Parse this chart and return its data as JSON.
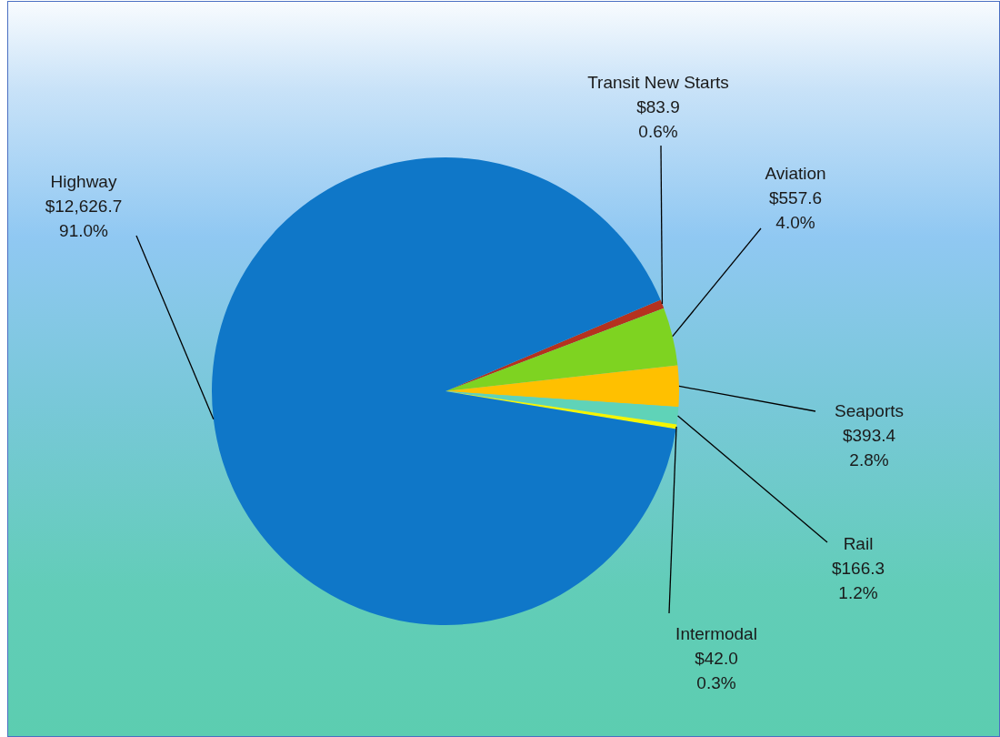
{
  "chart_data": {
    "type": "pie",
    "categories": [
      "Transit New Starts",
      "Aviation",
      "Seaports",
      "Rail",
      "Intermodal",
      "Highway"
    ],
    "values": [
      83.9,
      557.6,
      393.4,
      166.3,
      42.0,
      12626.7
    ],
    "colors": [
      "#b5321f",
      "#7ed321",
      "#ffc000",
      "#5fd3b8",
      "#f5f500",
      "#0f77c8"
    ],
    "value_labels": [
      "$83.9\n0.6%",
      "$557.6\n4.0%",
      "$393.4\n2.8%",
      "$166.3\n1.2%",
      "$42.0\n0.3%",
      "$12,626.7\n91.0%"
    ],
    "legend": false
  }
}
